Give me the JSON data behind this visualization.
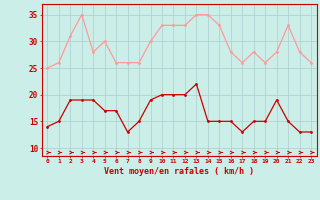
{
  "x": [
    0,
    1,
    2,
    3,
    4,
    5,
    6,
    7,
    8,
    9,
    10,
    11,
    12,
    13,
    14,
    15,
    16,
    17,
    18,
    19,
    20,
    21,
    22,
    23
  ],
  "mean_wind": [
    14,
    15,
    19,
    19,
    19,
    17,
    17,
    13,
    15,
    19,
    20,
    20,
    20,
    22,
    15,
    15,
    15,
    13,
    15,
    15,
    19,
    15,
    13,
    13
  ],
  "gust_wind": [
    25,
    26,
    31,
    35,
    28,
    30,
    26,
    26,
    26,
    30,
    33,
    33,
    33,
    35,
    35,
    33,
    28,
    26,
    28,
    26,
    28,
    33,
    28,
    26
  ],
  "bg_color": "#cceee8",
  "grid_color": "#aacccc",
  "mean_color": "#cc0000",
  "gust_color": "#ff9999",
  "xlabel": "Vent moyen/en rafales ( km/h )",
  "ylim": [
    8.5,
    37
  ],
  "yticks": [
    10,
    15,
    20,
    25,
    30,
    35
  ],
  "xlim": [
    -0.5,
    23.5
  ]
}
